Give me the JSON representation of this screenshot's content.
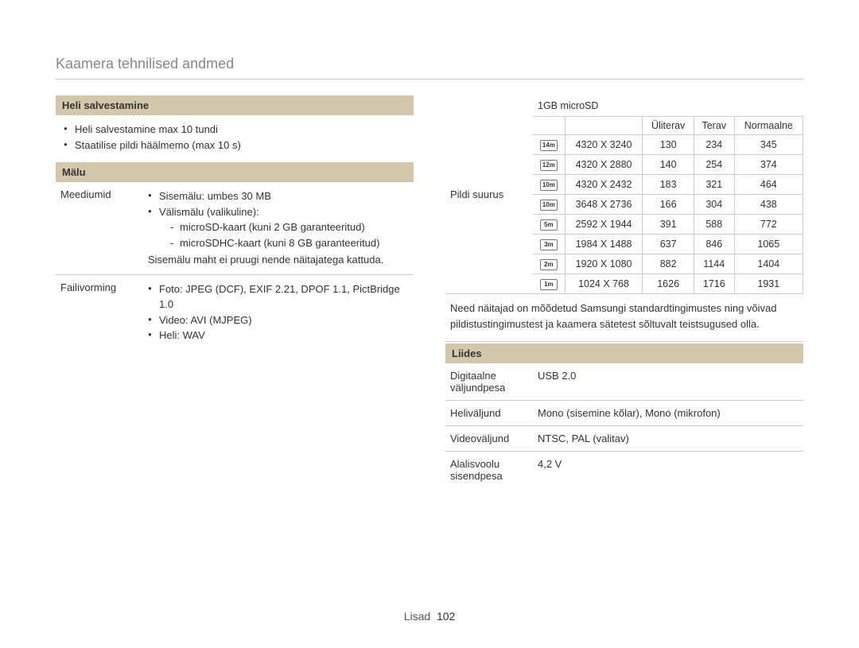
{
  "title": "Kaamera tehnilised andmed",
  "left": {
    "audio_header": "Heli salvestamine",
    "audio_b1": "Heli salvestamine max 10 tundi",
    "audio_b2": "Staatilise pildi häälmemo (max 10 s)",
    "memory_header": "Mälu",
    "media_label": "Meediumid",
    "media_b1": "Sisemälu: umbes 30 MB",
    "media_b2": "Välismälu (valikuline):",
    "media_s1": "microSD-kaart (kuni 2 GB garanteeritud)",
    "media_s2": "microSDHC-kaart (kuni 8 GB garanteeritud)",
    "media_note": "Sisemälu maht ei pruugi nende näitajatega kattuda.",
    "file_label": "Failivorming",
    "file_b1": "Foto: JPEG (DCF), EXIF 2.21, DPOF 1.1, PictBridge 1.0",
    "file_b2": "Video: AVI (MJPEG)",
    "file_b3": "Heli: WAV"
  },
  "right": {
    "cap_title": "1GB microSD",
    "cap_side": "Pildi suurus",
    "col_super": "Üliterav",
    "col_fine": "Terav",
    "col_normal": "Normaalne",
    "icons": [
      "14m",
      "12m",
      "10m",
      "10m",
      "5m",
      "3m",
      "2m",
      "1m"
    ],
    "rows": [
      {
        "res": "4320 X 3240",
        "a": "130",
        "b": "234",
        "c": "345"
      },
      {
        "res": "4320 X 2880",
        "a": "140",
        "b": "254",
        "c": "374"
      },
      {
        "res": "4320 X 2432",
        "a": "183",
        "b": "321",
        "c": "464"
      },
      {
        "res": "3648 X 2736",
        "a": "166",
        "b": "304",
        "c": "438"
      },
      {
        "res": "2592 X 1944",
        "a": "391",
        "b": "588",
        "c": "772"
      },
      {
        "res": "1984 X 1488",
        "a": "637",
        "b": "846",
        "c": "1065"
      },
      {
        "res": "1920 X 1080",
        "a": "882",
        "b": "1144",
        "c": "1404"
      },
      {
        "res": "1024 X 768",
        "a": "1626",
        "b": "1716",
        "c": "1931"
      }
    ],
    "cap_note": "Need näitajad on mõõdetud Samsungi standardtingimustes ning võivad pildistustingimustest ja kaamera sätetest sõltuvalt teistsugused olla.",
    "iface_header": "Liides",
    "iface": [
      {
        "l": "Digitaalne väljundpesa",
        "v": "USB 2.0"
      },
      {
        "l": "Heliväljund",
        "v": "Mono (sisemine kõlar), Mono (mikrofon)"
      },
      {
        "l": "Videoväljund",
        "v": "NTSC, PAL (valitav)"
      },
      {
        "l": "Alalisvoolu sisendpesa",
        "v": "4,2 V"
      }
    ]
  },
  "footer_label": "Lisad",
  "footer_page": "102",
  "style": {
    "header_bg": "#d3c7ac",
    "border": "#cccccc",
    "title_color": "#888888",
    "text_color": "#333333",
    "base_fontsize": 13,
    "title_fontsize": 18
  }
}
